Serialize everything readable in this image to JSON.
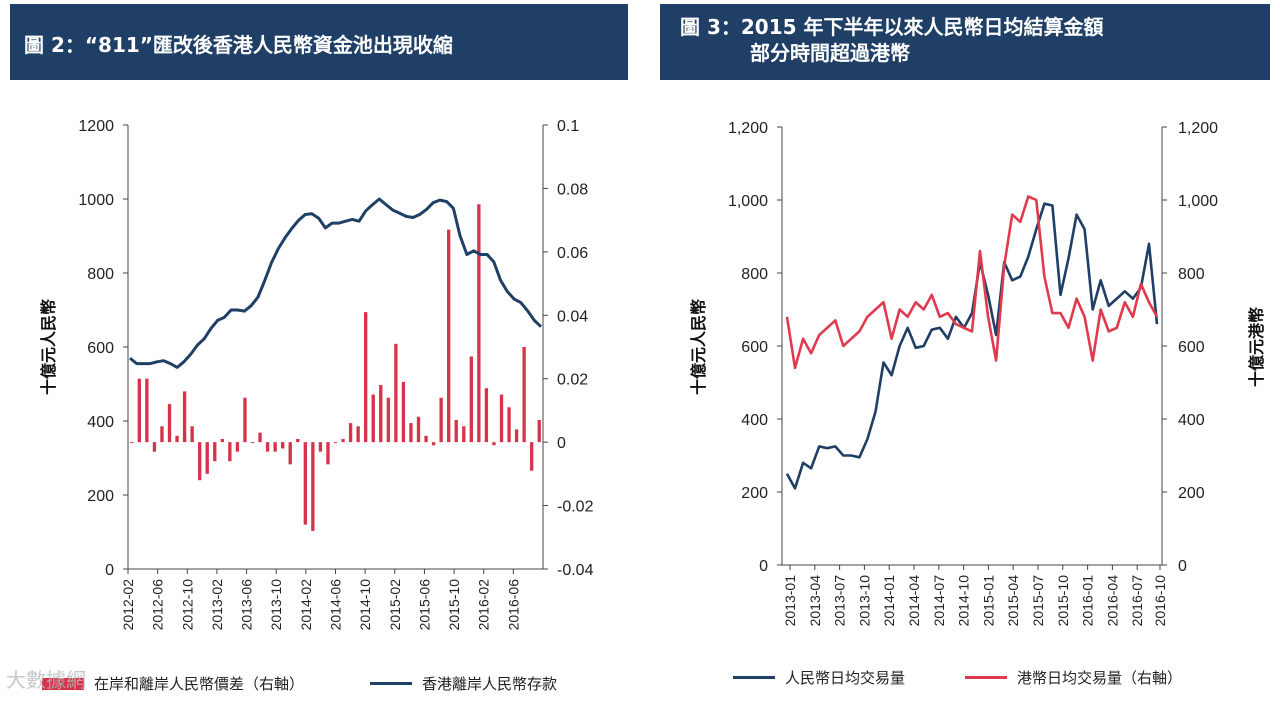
{
  "chart_data": [
    {
      "type": "bar+line",
      "title": "圖 2：“811”匯改後香港人民幣資金池出現收縮",
      "ylabel": "十億元人民幣",
      "ylim": [
        0,
        1200
      ],
      "y2lim": [
        -0.04,
        0.1
      ],
      "yticks": [
        "1200",
        "1000",
        "800",
        "600",
        "400",
        "200",
        "0"
      ],
      "y2ticks": [
        "0.1",
        "0.08",
        "0.06",
        "0.04",
        "0.02",
        "0",
        "-0.02",
        "-0.04"
      ],
      "xticks": [
        "2012-02",
        "2012-06",
        "2012-10",
        "2013-02",
        "2013-06",
        "2013-10",
        "2014-02",
        "2014-06",
        "2014-10",
        "2015-02",
        "2015-06",
        "2015-10",
        "2016-02",
        "2016-06"
      ],
      "series": [
        {
          "name": "在岸和離岸人民幣價差（右軸）",
          "type": "bar",
          "axis": "right",
          "color": "#d6324a",
          "values": [
            0,
            0.02,
            0.02,
            -0.003,
            0.005,
            0.012,
            0.002,
            0.016,
            0.005,
            -0.012,
            -0.01,
            -0.006,
            0.001,
            -0.006,
            -0.003,
            0.014,
            0,
            0.003,
            -0.003,
            -0.003,
            -0.002,
            -0.007,
            0.001,
            -0.026,
            -0.028,
            -0.003,
            -0.007,
            0,
            0.001,
            0.006,
            0.005,
            0.041,
            0.015,
            0.018,
            0.014,
            0.031,
            0.019,
            0.006,
            0.008,
            0.002,
            -0.001,
            0.014,
            0.067,
            0.007,
            0.005,
            0.027,
            0.075,
            0.017,
            -0.001,
            0.015,
            0.011,
            0.004,
            0.03,
            -0.009,
            0.007
          ]
        },
        {
          "name": "香港離岸人民幣存款",
          "type": "line",
          "axis": "left",
          "color": "#1f3f66",
          "values": [
            570,
            555,
            555,
            555,
            560,
            563,
            555,
            545,
            560,
            580,
            605,
            622,
            650,
            672,
            680,
            700,
            700,
            697,
            712,
            735,
            780,
            828,
            865,
            895,
            920,
            942,
            958,
            960,
            948,
            922,
            935,
            935,
            940,
            945,
            940,
            968,
            985,
            1000,
            985,
            970,
            962,
            953,
            950,
            958,
            972,
            990,
            997,
            993,
            975,
            900,
            850,
            860,
            850,
            850,
            830,
            780,
            750,
            730,
            720,
            698,
            672,
            655
          ]
        }
      ]
    },
    {
      "type": "line",
      "title": "圖 3：2015 年下半年以來人民幣日均結算金額部分時間超過港幣",
      "ylabel": "十億元人民幣",
      "y2label": "十億元港幣",
      "ylim": [
        0,
        1200
      ],
      "y2lim": [
        0,
        1200
      ],
      "yticks": [
        "1,200",
        "1,000",
        "800",
        "600",
        "400",
        "200",
        "0"
      ],
      "y2ticks": [
        "1,200",
        "1,000",
        "800",
        "600",
        "400",
        "200",
        "0"
      ],
      "xticks": [
        "2013-01",
        "2013-04",
        "2013-07",
        "2013-10",
        "2014-01",
        "2014-04",
        "2014-07",
        "2014-10",
        "2015-01",
        "2015-04",
        "2015-07",
        "2015-10",
        "2016-01",
        "2016-04",
        "2016-07",
        "2016-10"
      ],
      "series": [
        {
          "name": "人民幣日均交易量",
          "axis": "left",
          "color": "#1f3f66",
          "values": [
            250,
            210,
            280,
            265,
            325,
            320,
            325,
            300,
            300,
            295,
            345,
            420,
            555,
            520,
            600,
            650,
            595,
            600,
            645,
            650,
            620,
            680,
            650,
            690,
            830,
            740,
            630,
            830,
            780,
            790,
            845,
            920,
            990,
            985,
            740,
            840,
            960,
            920,
            700,
            780,
            710,
            730,
            750,
            730,
            760,
            880,
            660
          ]
        },
        {
          "name": "港幣日均交易量（右軸）",
          "axis": "right",
          "color": "#e03a4e",
          "values": [
            680,
            540,
            620,
            580,
            630,
            650,
            670,
            600,
            620,
            640,
            680,
            700,
            720,
            620,
            700,
            680,
            720,
            700,
            740,
            680,
            690,
            660,
            650,
            640,
            860,
            680,
            560,
            820,
            960,
            940,
            1010,
            1000,
            790,
            690,
            690,
            650,
            730,
            680,
            560,
            700,
            640,
            650,
            720,
            680,
            770,
            720,
            680
          ]
        }
      ]
    }
  ],
  "legend": {
    "left_bar": "在岸和離岸人民幣價差（右軸）",
    "left_line": "香港離岸人民幣存款",
    "right_rmb": "人民幣日均交易量",
    "right_hkd": "港幣日均交易量（右軸）"
  },
  "watermark": "大數據網",
  "colors": {
    "navy": "#1f3f66",
    "red": "#d6324a",
    "red2": "#e03a4e"
  }
}
